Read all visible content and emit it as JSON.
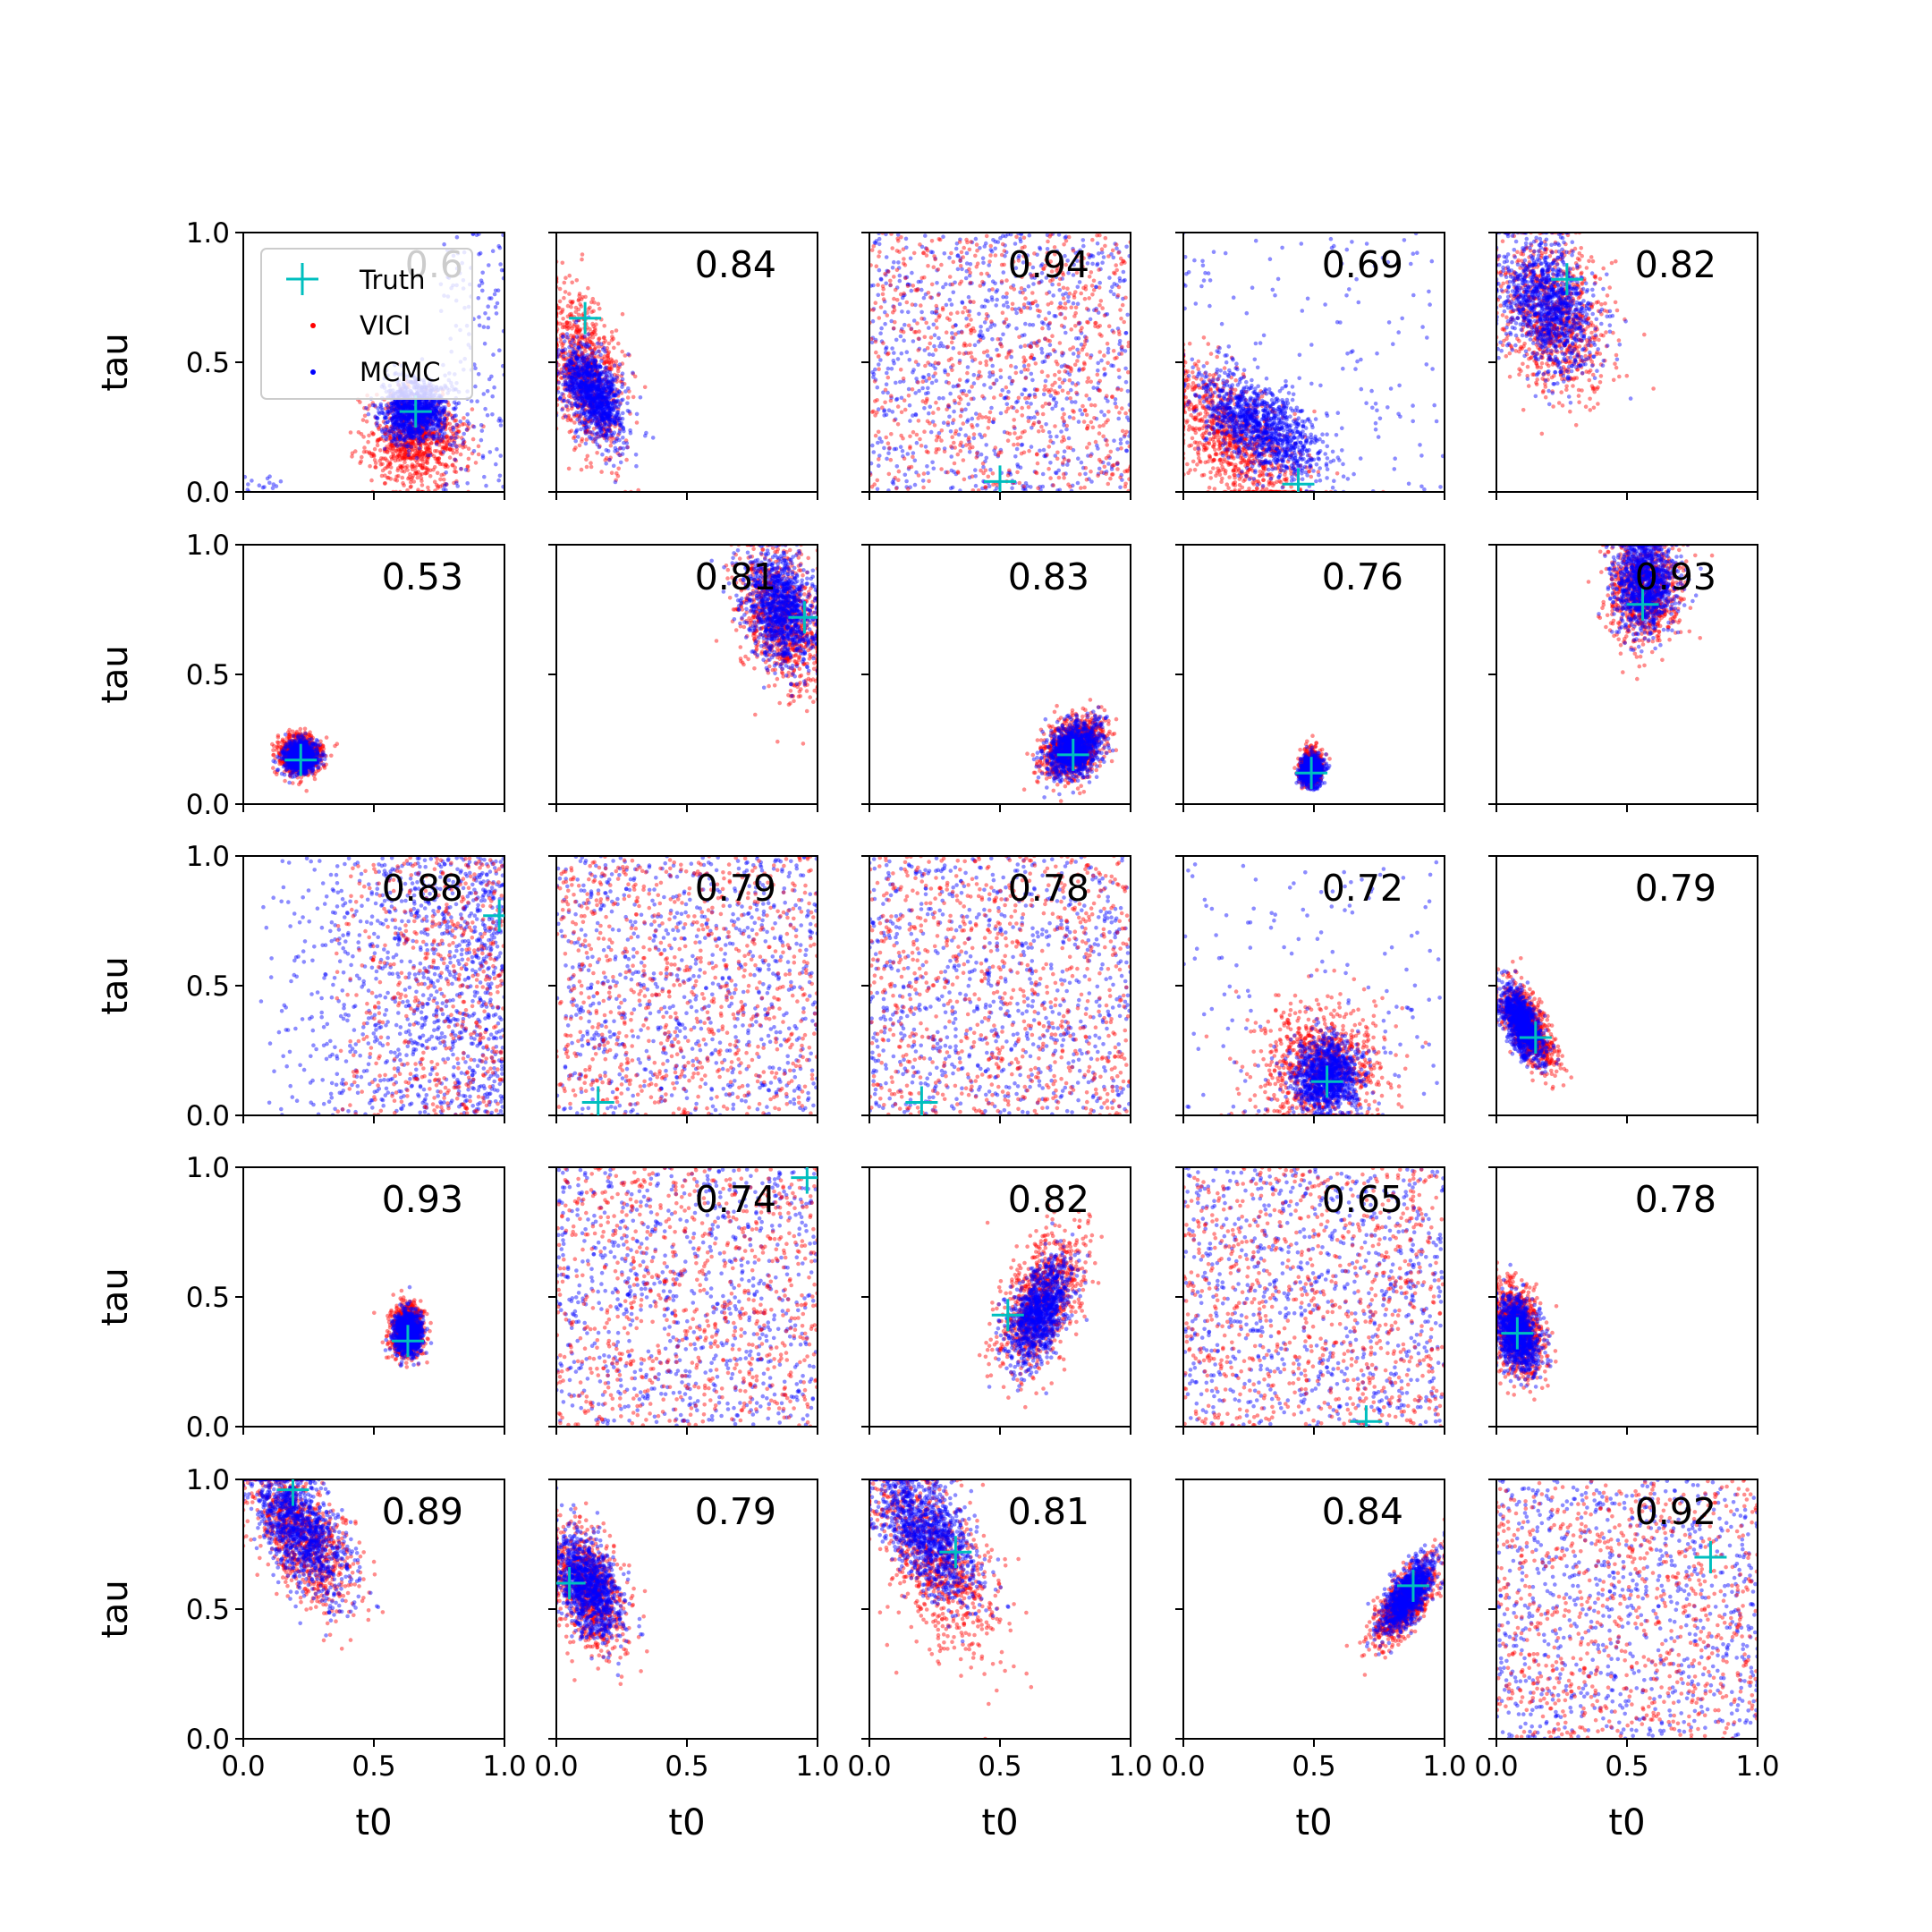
{
  "colors": {
    "vici": "#ff0000",
    "mcmc": "#0000ff",
    "truth": "#00bfbf",
    "axes": "#000000"
  },
  "legend": {
    "entries": [
      "Truth",
      "VICI",
      "MCMC"
    ]
  },
  "chart_data": {
    "type": "scatter",
    "layout": "5x5 grid of subplots",
    "xlabel": "t0",
    "ylabel": "tau",
    "xlim": [
      0.0,
      1.0
    ],
    "ylim": [
      0.0,
      1.0
    ],
    "xticks": [
      "0.0",
      "0.5",
      "1.0"
    ],
    "yticks": [
      "0.0",
      "0.5",
      "1.0"
    ],
    "series_names": [
      "VICI",
      "MCMC",
      "Truth"
    ],
    "panels": [
      {
        "score": "0.6",
        "truth": [
          0.66,
          0.31
        ],
        "vici": {
          "cx": 0.66,
          "cy": 0.2,
          "sx": 0.09,
          "sy": 0.09,
          "rho": 0.0
        },
        "mcmc": {
          "cx": 0.66,
          "cy": 0.31,
          "sx": 0.06,
          "sy": 0.06,
          "rho": 0.0
        },
        "uniform": "mcmc_edge"
      },
      {
        "score": "0.84",
        "truth": [
          0.11,
          0.67
        ],
        "vici": {
          "cx": 0.11,
          "cy": 0.46,
          "sx": 0.07,
          "sy": 0.15,
          "rho": -0.4
        },
        "mcmc": {
          "cx": 0.14,
          "cy": 0.38,
          "sx": 0.06,
          "sy": 0.09,
          "rho": -0.5
        }
      },
      {
        "score": "0.94",
        "truth": [
          0.5,
          0.04
        ],
        "uniform": "both"
      },
      {
        "score": "0.69",
        "truth": [
          0.44,
          0.03
        ],
        "vici": {
          "cx": 0.2,
          "cy": 0.2,
          "sx": 0.13,
          "sy": 0.14,
          "rho": -0.6
        },
        "mcmc": {
          "cx": 0.3,
          "cy": 0.25,
          "sx": 0.12,
          "sy": 0.1,
          "rho": -0.6
        },
        "uniform": "mcmc_sparse"
      },
      {
        "score": "0.82",
        "truth": [
          0.27,
          0.82
        ],
        "vici": {
          "cx": 0.22,
          "cy": 0.68,
          "sx": 0.1,
          "sy": 0.15,
          "rho": -0.3
        },
        "mcmc": {
          "cx": 0.2,
          "cy": 0.72,
          "sx": 0.09,
          "sy": 0.13,
          "rho": -0.3
        }
      },
      {
        "score": "0.53",
        "truth": [
          0.22,
          0.17
        ],
        "vici": {
          "cx": 0.22,
          "cy": 0.19,
          "sx": 0.04,
          "sy": 0.04,
          "rho": 0.0
        },
        "mcmc": {
          "cx": 0.22,
          "cy": 0.18,
          "sx": 0.03,
          "sy": 0.03,
          "rho": 0.0
        }
      },
      {
        "score": "0.81",
        "truth": [
          0.95,
          0.72
        ],
        "vici": {
          "cx": 0.86,
          "cy": 0.72,
          "sx": 0.08,
          "sy": 0.13,
          "rho": -0.3
        },
        "mcmc": {
          "cx": 0.86,
          "cy": 0.75,
          "sx": 0.07,
          "sy": 0.11,
          "rho": -0.3
        }
      },
      {
        "score": "0.83",
        "truth": [
          0.78,
          0.19
        ],
        "vici": {
          "cx": 0.78,
          "cy": 0.22,
          "sx": 0.06,
          "sy": 0.06,
          "rho": 0.3
        },
        "mcmc": {
          "cx": 0.78,
          "cy": 0.21,
          "sx": 0.05,
          "sy": 0.05,
          "rho": 0.3
        }
      },
      {
        "score": "0.76",
        "truth": [
          0.49,
          0.12
        ],
        "vici": {
          "cx": 0.49,
          "cy": 0.14,
          "sx": 0.02,
          "sy": 0.03,
          "rho": 0.0
        },
        "mcmc": {
          "cx": 0.49,
          "cy": 0.13,
          "sx": 0.02,
          "sy": 0.025,
          "rho": 0.0
        }
      },
      {
        "score": "0.93",
        "truth": [
          0.56,
          0.77
        ],
        "vici": {
          "cx": 0.57,
          "cy": 0.82,
          "sx": 0.07,
          "sy": 0.1,
          "rho": 0.0
        },
        "mcmc": {
          "cx": 0.57,
          "cy": 0.85,
          "sx": 0.06,
          "sy": 0.09,
          "rho": 0.0
        }
      },
      {
        "score": "0.88",
        "truth": [
          0.98,
          0.77
        ],
        "uniform": "right_heavy"
      },
      {
        "score": "0.79",
        "truth": [
          0.16,
          0.05
        ],
        "uniform": "both"
      },
      {
        "score": "0.78",
        "truth": [
          0.2,
          0.05
        ],
        "uniform": "both"
      },
      {
        "score": "0.72",
        "truth": [
          0.55,
          0.13
        ],
        "vici": {
          "cx": 0.52,
          "cy": 0.2,
          "sx": 0.12,
          "sy": 0.12,
          "rho": 0.0
        },
        "mcmc": {
          "cx": 0.55,
          "cy": 0.15,
          "sx": 0.06,
          "sy": 0.07,
          "rho": 0.0
        },
        "uniform": "mcmc_sparse"
      },
      {
        "score": "0.79",
        "truth": [
          0.15,
          0.3
        ],
        "vici": {
          "cx": 0.12,
          "cy": 0.34,
          "sx": 0.05,
          "sy": 0.08,
          "rho": -0.6
        },
        "mcmc": {
          "cx": 0.1,
          "cy": 0.35,
          "sx": 0.04,
          "sy": 0.07,
          "rho": -0.6
        }
      },
      {
        "score": "0.93",
        "truth": [
          0.63,
          0.33
        ],
        "vici": {
          "cx": 0.63,
          "cy": 0.37,
          "sx": 0.03,
          "sy": 0.05,
          "rho": 0.0
        },
        "mcmc": {
          "cx": 0.63,
          "cy": 0.36,
          "sx": 0.025,
          "sy": 0.04,
          "rho": 0.0
        }
      },
      {
        "score": "0.74",
        "truth": [
          0.96,
          0.96
        ],
        "uniform": "both"
      },
      {
        "score": "0.82",
        "truth": [
          0.53,
          0.43
        ],
        "vici": {
          "cx": 0.66,
          "cy": 0.48,
          "sx": 0.08,
          "sy": 0.13,
          "rho": 0.5
        },
        "mcmc": {
          "cx": 0.65,
          "cy": 0.44,
          "sx": 0.06,
          "sy": 0.1,
          "rho": 0.5
        }
      },
      {
        "score": "0.65",
        "truth": [
          0.7,
          0.02
        ],
        "uniform": "both"
      },
      {
        "score": "0.78",
        "truth": [
          0.08,
          0.36
        ],
        "vici": {
          "cx": 0.08,
          "cy": 0.38,
          "sx": 0.05,
          "sy": 0.09,
          "rho": -0.3
        },
        "mcmc": {
          "cx": 0.08,
          "cy": 0.36,
          "sx": 0.04,
          "sy": 0.07,
          "rho": -0.3
        }
      },
      {
        "score": "0.89",
        "truth": [
          0.19,
          0.96
        ],
        "vici": {
          "cx": 0.22,
          "cy": 0.78,
          "sx": 0.1,
          "sy": 0.14,
          "rho": -0.6
        },
        "mcmc": {
          "cx": 0.22,
          "cy": 0.8,
          "sx": 0.09,
          "sy": 0.13,
          "rho": -0.6
        }
      },
      {
        "score": "0.79",
        "truth": [
          0.05,
          0.6
        ],
        "vici": {
          "cx": 0.12,
          "cy": 0.58,
          "sx": 0.07,
          "sy": 0.12,
          "rho": -0.4
        },
        "mcmc": {
          "cx": 0.12,
          "cy": 0.59,
          "sx": 0.06,
          "sy": 0.1,
          "rho": -0.4
        }
      },
      {
        "score": "0.81",
        "truth": [
          0.33,
          0.72
        ],
        "vici": {
          "cx": 0.25,
          "cy": 0.7,
          "sx": 0.12,
          "sy": 0.18,
          "rho": -0.6
        },
        "mcmc": {
          "cx": 0.22,
          "cy": 0.8,
          "sx": 0.1,
          "sy": 0.13,
          "rho": -0.6
        }
      },
      {
        "score": "0.84",
        "truth": [
          0.88,
          0.59
        ],
        "vici": {
          "cx": 0.85,
          "cy": 0.53,
          "sx": 0.06,
          "sy": 0.08,
          "rho": 0.7
        },
        "mcmc": {
          "cx": 0.86,
          "cy": 0.55,
          "sx": 0.05,
          "sy": 0.07,
          "rho": 0.7
        }
      },
      {
        "score": "0.92",
        "truth": [
          0.82,
          0.7
        ],
        "uniform": "both"
      }
    ]
  }
}
